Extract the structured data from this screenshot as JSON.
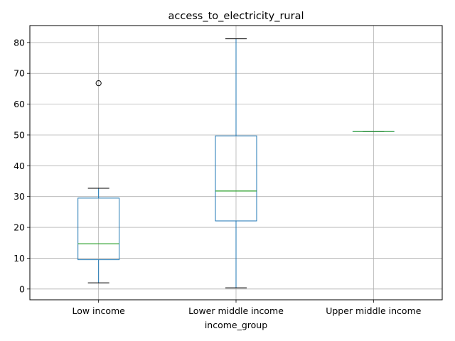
{
  "chart_data": {
    "type": "boxplot",
    "title": "access_to_electricity_rural",
    "xlabel": "income_group",
    "ylabel": "",
    "ylim": [
      -3.5,
      85.5
    ],
    "yticks": [
      0,
      10,
      20,
      30,
      40,
      50,
      60,
      70,
      80
    ],
    "grid": true,
    "categories": [
      "Low income",
      "Lower middle income",
      "Upper middle income"
    ],
    "boxes": [
      {
        "category": "Low income",
        "whisker_low": 2.0,
        "q1": 9.5,
        "median": 14.7,
        "q3": 29.5,
        "whisker_high": 32.7,
        "outliers": [
          66.8
        ]
      },
      {
        "category": "Lower middle income",
        "whisker_low": 0.4,
        "q1": 22.1,
        "median": 31.8,
        "q3": 49.7,
        "whisker_high": 81.2,
        "outliers": []
      },
      {
        "category": "Upper middle income",
        "whisker_low": 51.1,
        "q1": 51.1,
        "median": 51.1,
        "q3": 51.1,
        "whisker_high": 51.1,
        "outliers": []
      }
    ],
    "colors": {
      "box": "#1f77b4",
      "median": "#2ca02c",
      "whisker_cap": "#000000",
      "grid": "#b0b0b0"
    }
  }
}
